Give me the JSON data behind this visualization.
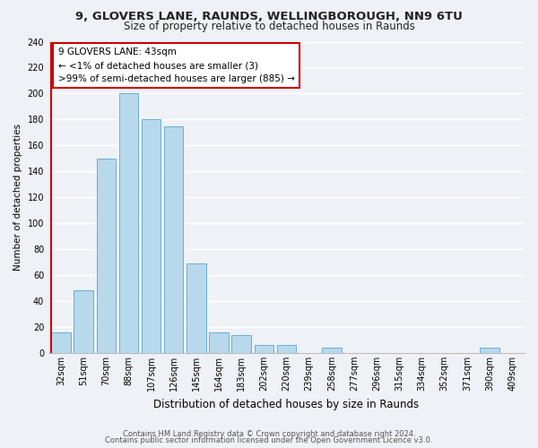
{
  "title_line1": "9, GLOVERS LANE, RAUNDS, WELLINGBOROUGH, NN9 6TU",
  "title_line2": "Size of property relative to detached houses in Raunds",
  "xlabel": "Distribution of detached houses by size in Raunds",
  "ylabel": "Number of detached properties",
  "bar_labels": [
    "32sqm",
    "51sqm",
    "70sqm",
    "88sqm",
    "107sqm",
    "126sqm",
    "145sqm",
    "164sqm",
    "183sqm",
    "202sqm",
    "220sqm",
    "239sqm",
    "258sqm",
    "277sqm",
    "296sqm",
    "315sqm",
    "334sqm",
    "352sqm",
    "371sqm",
    "390sqm",
    "409sqm"
  ],
  "bar_values": [
    16,
    48,
    150,
    200,
    180,
    175,
    69,
    16,
    14,
    6,
    6,
    0,
    4,
    0,
    0,
    0,
    0,
    0,
    0,
    4,
    0
  ],
  "bar_color": "#b8d9ec",
  "bar_edge_color": "#6aadd5",
  "highlight_color": "#cc0000",
  "annotation_title": "9 GLOVERS LANE: 43sqm",
  "annotation_line1": "← <1% of detached houses are smaller (3)",
  "annotation_line2": ">99% of semi-detached houses are larger (885) →",
  "annotation_box_color": "#ffffff",
  "annotation_box_edge": "#cc0000",
  "ylim": [
    0,
    240
  ],
  "yticks": [
    0,
    20,
    40,
    60,
    80,
    100,
    120,
    140,
    160,
    180,
    200,
    220,
    240
  ],
  "footnote1": "Contains HM Land Registry data © Crown copyright and database right 2024.",
  "footnote2": "Contains public sector information licensed under the Open Government Licence v3.0.",
  "bg_color": "#eef2f7",
  "grid_color": "#ffffff",
  "title1_fontsize": 9.5,
  "title2_fontsize": 8.5,
  "xlabel_fontsize": 8.5,
  "ylabel_fontsize": 7.5,
  "tick_fontsize": 7.0,
  "footnote_fontsize": 6.0
}
